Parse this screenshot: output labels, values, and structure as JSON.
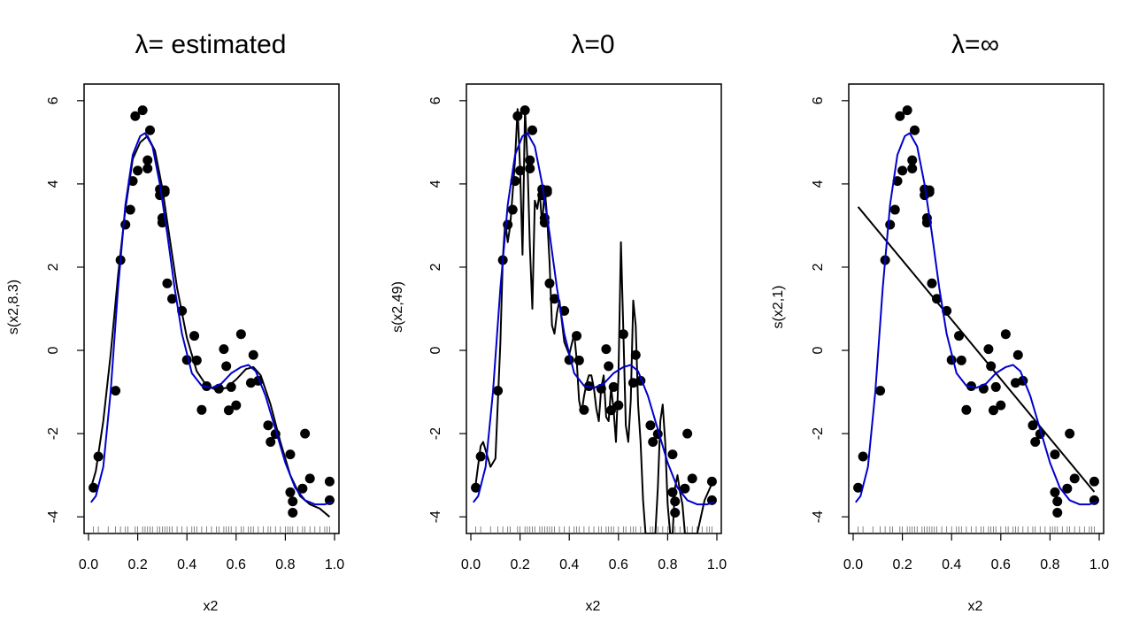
{
  "chart_data": [
    {
      "type": "scatter",
      "title": "λ= estimated",
      "xlabel": "x2",
      "ylabel": "s(x2,8.3)",
      "xlim": [
        0.0,
        1.0
      ],
      "ylim": [
        -4.4,
        6.4
      ],
      "xticks": [
        "0.0",
        "0.2",
        "0.4",
        "0.6",
        "0.8",
        "1.0"
      ],
      "yticks": [
        "-4",
        "-2",
        "0",
        "2",
        "4",
        "6"
      ],
      "fit_curve": {
        "color": "#000000",
        "x": [
          0.01,
          0.03,
          0.06,
          0.09,
          0.12,
          0.15,
          0.18,
          0.21,
          0.24,
          0.27,
          0.3,
          0.33,
          0.36,
          0.4,
          0.44,
          0.48,
          0.52,
          0.56,
          0.6,
          0.64,
          0.67,
          0.7,
          0.74,
          0.78,
          0.82,
          0.86,
          0.9,
          0.94,
          0.98
        ],
        "y": [
          -3.3,
          -2.9,
          -1.7,
          -0.1,
          1.8,
          3.4,
          4.6,
          5.0,
          5.15,
          4.8,
          3.9,
          2.7,
          1.5,
          0.3,
          -0.5,
          -0.85,
          -0.95,
          -0.9,
          -0.7,
          -0.45,
          -0.4,
          -0.6,
          -1.3,
          -2.2,
          -3.0,
          -3.5,
          -3.7,
          -3.8,
          -4.0
        ]
      },
      "reference_curve": {
        "color": "#0000cc",
        "x": [
          0.01,
          0.03,
          0.06,
          0.09,
          0.12,
          0.15,
          0.18,
          0.21,
          0.23,
          0.26,
          0.29,
          0.32,
          0.35,
          0.38,
          0.42,
          0.46,
          0.5,
          0.54,
          0.58,
          0.62,
          0.65,
          0.68,
          0.72,
          0.76,
          0.8,
          0.84,
          0.88,
          0.92,
          0.96,
          0.99
        ],
        "y": [
          -3.65,
          -3.5,
          -2.8,
          -1.0,
          1.5,
          3.5,
          4.7,
          5.15,
          5.22,
          4.9,
          4.0,
          2.8,
          1.5,
          0.4,
          -0.55,
          -0.85,
          -0.9,
          -0.8,
          -0.55,
          -0.4,
          -0.35,
          -0.5,
          -1.1,
          -1.9,
          -2.7,
          -3.3,
          -3.6,
          -3.7,
          -3.7,
          -3.65
        ]
      },
      "points": {
        "x": [
          0.02,
          0.04,
          0.11,
          0.13,
          0.15,
          0.17,
          0.18,
          0.19,
          0.2,
          0.22,
          0.24,
          0.24,
          0.25,
          0.29,
          0.29,
          0.3,
          0.3,
          0.31,
          0.31,
          0.32,
          0.34,
          0.38,
          0.4,
          0.43,
          0.44,
          0.46,
          0.48,
          0.53,
          0.55,
          0.56,
          0.57,
          0.58,
          0.6,
          0.62,
          0.66,
          0.67,
          0.69,
          0.73,
          0.74,
          0.76,
          0.82,
          0.82,
          0.83,
          0.83,
          0.87,
          0.88,
          0.9,
          0.98,
          0.98
        ],
        "y": [
          -3.3,
          -2.55,
          -0.97,
          2.17,
          3.02,
          3.38,
          4.07,
          5.63,
          4.32,
          5.77,
          4.57,
          4.37,
          5.29,
          3.73,
          3.87,
          3.18,
          3.07,
          3.85,
          3.8,
          1.61,
          1.24,
          0.95,
          -0.23,
          0.35,
          -0.24,
          -1.43,
          -0.86,
          -0.92,
          0.03,
          -0.38,
          -1.44,
          -0.88,
          -1.32,
          0.39,
          -0.78,
          -0.11,
          -0.73,
          -1.8,
          -2.2,
          -2.01,
          -3.41,
          -2.5,
          -3.9,
          -3.63,
          -3.32,
          -2.0,
          -3.08,
          -3.15,
          -3.6
        ]
      },
      "rug": [
        0.02,
        0.04,
        0.08,
        0.11,
        0.13,
        0.15,
        0.16,
        0.19,
        0.2,
        0.22,
        0.23,
        0.24,
        0.25,
        0.26,
        0.28,
        0.29,
        0.3,
        0.31,
        0.32,
        0.33,
        0.34,
        0.36,
        0.38,
        0.4,
        0.42,
        0.43,
        0.44,
        0.46,
        0.48,
        0.5,
        0.52,
        0.53,
        0.55,
        0.56,
        0.57,
        0.58,
        0.6,
        0.62,
        0.63,
        0.65,
        0.66,
        0.67,
        0.69,
        0.71,
        0.73,
        0.74,
        0.76,
        0.78,
        0.8,
        0.81,
        0.82,
        0.83,
        0.85,
        0.87,
        0.88,
        0.9,
        0.92,
        0.94,
        0.96,
        0.97,
        0.98
      ]
    },
    {
      "type": "scatter",
      "title": "λ=0",
      "xlabel": "x2",
      "ylabel": "s(x2,49)",
      "xlim": [
        0.0,
        1.0
      ],
      "ylim": [
        -4.4,
        6.4
      ],
      "xticks": [
        "0.0",
        "0.2",
        "0.4",
        "0.6",
        "0.8",
        "1.0"
      ],
      "yticks": [
        "-4",
        "-2",
        "0",
        "2",
        "4",
        "6"
      ],
      "fit_curve": {
        "color": "#000000",
        "x": [
          0.01,
          0.02,
          0.04,
          0.05,
          0.07,
          0.08,
          0.1,
          0.12,
          0.13,
          0.14,
          0.15,
          0.16,
          0.17,
          0.18,
          0.19,
          0.2,
          0.21,
          0.22,
          0.23,
          0.24,
          0.25,
          0.26,
          0.27,
          0.28,
          0.29,
          0.3,
          0.31,
          0.32,
          0.33,
          0.34,
          0.35,
          0.36,
          0.38,
          0.4,
          0.42,
          0.43,
          0.44,
          0.45,
          0.46,
          0.47,
          0.48,
          0.49,
          0.5,
          0.51,
          0.52,
          0.53,
          0.54,
          0.55,
          0.56,
          0.57,
          0.58,
          0.59,
          0.6,
          0.61,
          0.62,
          0.63,
          0.64,
          0.65,
          0.66,
          0.67,
          0.68,
          0.69,
          0.7,
          0.71,
          0.72,
          0.73,
          0.74,
          0.75,
          0.76,
          0.77,
          0.78,
          0.79,
          0.8,
          0.81,
          0.82,
          0.83,
          0.84,
          0.85,
          0.86,
          0.87,
          0.88,
          0.89,
          0.9,
          0.91,
          0.92,
          0.95,
          0.98
        ],
        "y": [
          -3.3,
          -3.2,
          -2.3,
          -2.2,
          -2.6,
          -2.8,
          -2.6,
          0.2,
          2.2,
          3.1,
          2.6,
          3.0,
          3.8,
          4.6,
          5.8,
          4.4,
          2.3,
          5.8,
          4.6,
          2.5,
          1.0,
          3.6,
          3.4,
          3.8,
          3.0,
          3.9,
          3.2,
          2.1,
          0.6,
          0.4,
          0.9,
          1.2,
          0.2,
          -0.1,
          0.4,
          -0.2,
          -1.2,
          -1.5,
          -1.1,
          -0.8,
          -0.6,
          -0.6,
          -0.9,
          -1.4,
          -1.7,
          -0.9,
          -0.6,
          -1.6,
          -1.7,
          -0.9,
          -1.4,
          -2.2,
          -0.6,
          2.6,
          0.4,
          -1.8,
          -2.2,
          -1.2,
          1.2,
          0.6,
          -1.3,
          -2.2,
          -3.6,
          -4.4,
          -4.4,
          -4.4,
          -4.4,
          -4.4,
          -3.3,
          -1.7,
          -1.3,
          -2.2,
          -3.7,
          -4.4,
          -4.4,
          -3.3,
          -3.0,
          -3.4,
          -3.7,
          -4.4,
          -4.4,
          -4.4,
          -4.4,
          -4.4,
          -4.4,
          -3.6,
          -3.2
        ]
      },
      "reference_curve": {
        "color": "#0000cc",
        "x": [
          0.01,
          0.03,
          0.06,
          0.09,
          0.12,
          0.15,
          0.18,
          0.21,
          0.23,
          0.26,
          0.29,
          0.32,
          0.35,
          0.38,
          0.42,
          0.46,
          0.5,
          0.54,
          0.58,
          0.62,
          0.65,
          0.68,
          0.72,
          0.76,
          0.8,
          0.84,
          0.88,
          0.92,
          0.96,
          0.99
        ],
        "y": [
          -3.65,
          -3.5,
          -2.8,
          -1.0,
          1.5,
          3.5,
          4.7,
          5.15,
          5.22,
          4.9,
          4.0,
          2.8,
          1.5,
          0.4,
          -0.55,
          -0.85,
          -0.9,
          -0.8,
          -0.55,
          -0.4,
          -0.35,
          -0.5,
          -1.1,
          -1.9,
          -2.7,
          -3.3,
          -3.6,
          -3.7,
          -3.7,
          -3.65
        ]
      },
      "points": {
        "x": [
          0.02,
          0.04,
          0.11,
          0.13,
          0.15,
          0.17,
          0.18,
          0.19,
          0.2,
          0.22,
          0.24,
          0.24,
          0.25,
          0.29,
          0.29,
          0.3,
          0.3,
          0.31,
          0.31,
          0.32,
          0.34,
          0.38,
          0.4,
          0.43,
          0.44,
          0.46,
          0.48,
          0.53,
          0.55,
          0.56,
          0.57,
          0.58,
          0.6,
          0.62,
          0.66,
          0.67,
          0.69,
          0.73,
          0.74,
          0.76,
          0.82,
          0.82,
          0.83,
          0.83,
          0.87,
          0.88,
          0.9,
          0.98,
          0.98
        ],
        "y": [
          -3.3,
          -2.55,
          -0.97,
          2.17,
          3.02,
          3.38,
          4.07,
          5.63,
          4.32,
          5.77,
          4.57,
          4.37,
          5.29,
          3.73,
          3.87,
          3.18,
          3.07,
          3.85,
          3.8,
          1.61,
          1.24,
          0.95,
          -0.23,
          0.35,
          -0.24,
          -1.43,
          -0.86,
          -0.92,
          0.03,
          -0.38,
          -1.44,
          -0.88,
          -1.32,
          0.39,
          -0.78,
          -0.11,
          -0.73,
          -1.8,
          -2.2,
          -2.01,
          -3.41,
          -2.5,
          -3.9,
          -3.63,
          -3.32,
          -2.0,
          -3.08,
          -3.15,
          -3.6
        ]
      },
      "rug": [
        0.02,
        0.04,
        0.08,
        0.11,
        0.13,
        0.15,
        0.16,
        0.19,
        0.2,
        0.22,
        0.23,
        0.24,
        0.25,
        0.26,
        0.28,
        0.29,
        0.3,
        0.31,
        0.32,
        0.33,
        0.34,
        0.36,
        0.38,
        0.4,
        0.42,
        0.43,
        0.44,
        0.46,
        0.48,
        0.5,
        0.52,
        0.53,
        0.55,
        0.56,
        0.57,
        0.58,
        0.6,
        0.62,
        0.63,
        0.65,
        0.66,
        0.67,
        0.69,
        0.71,
        0.73,
        0.74,
        0.76,
        0.78,
        0.8,
        0.81,
        0.82,
        0.83,
        0.85,
        0.87,
        0.88,
        0.9,
        0.92,
        0.94,
        0.96,
        0.97,
        0.98
      ]
    },
    {
      "type": "scatter",
      "title": "λ=∞",
      "xlabel": "x2",
      "ylabel": "s(x2,1)",
      "xlim": [
        0.0,
        1.0
      ],
      "ylim": [
        -4.4,
        6.4
      ],
      "xticks": [
        "0.0",
        "0.2",
        "0.4",
        "0.6",
        "0.8",
        "1.0"
      ],
      "yticks": [
        "-4",
        "-2",
        "0",
        "2",
        "4",
        "6"
      ],
      "fit_curve": {
        "color": "#000000",
        "x": [
          0.02,
          0.98
        ],
        "y": [
          3.45,
          -3.4
        ]
      },
      "reference_curve": {
        "color": "#0000cc",
        "x": [
          0.01,
          0.03,
          0.06,
          0.09,
          0.12,
          0.15,
          0.18,
          0.21,
          0.23,
          0.26,
          0.29,
          0.32,
          0.35,
          0.38,
          0.42,
          0.46,
          0.5,
          0.54,
          0.58,
          0.62,
          0.65,
          0.68,
          0.72,
          0.76,
          0.8,
          0.84,
          0.88,
          0.92,
          0.96,
          0.99
        ],
        "y": [
          -3.65,
          -3.5,
          -2.8,
          -1.0,
          1.5,
          3.5,
          4.7,
          5.15,
          5.22,
          4.9,
          4.0,
          2.8,
          1.5,
          0.4,
          -0.55,
          -0.85,
          -0.9,
          -0.8,
          -0.55,
          -0.4,
          -0.35,
          -0.5,
          -1.1,
          -1.9,
          -2.7,
          -3.3,
          -3.6,
          -3.7,
          -3.7,
          -3.65
        ]
      },
      "points": {
        "x": [
          0.02,
          0.04,
          0.11,
          0.13,
          0.15,
          0.17,
          0.18,
          0.19,
          0.2,
          0.22,
          0.24,
          0.24,
          0.25,
          0.29,
          0.29,
          0.3,
          0.3,
          0.31,
          0.31,
          0.32,
          0.34,
          0.38,
          0.4,
          0.43,
          0.44,
          0.46,
          0.48,
          0.53,
          0.55,
          0.56,
          0.57,
          0.58,
          0.6,
          0.62,
          0.66,
          0.67,
          0.69,
          0.73,
          0.74,
          0.76,
          0.82,
          0.82,
          0.83,
          0.83,
          0.87,
          0.88,
          0.9,
          0.98,
          0.98
        ],
        "y": [
          -3.3,
          -2.55,
          -0.97,
          2.17,
          3.02,
          3.38,
          4.07,
          5.63,
          4.32,
          5.77,
          4.57,
          4.37,
          5.29,
          3.73,
          3.87,
          3.18,
          3.07,
          3.85,
          3.8,
          1.61,
          1.24,
          0.95,
          -0.23,
          0.35,
          -0.24,
          -1.43,
          -0.86,
          -0.92,
          0.03,
          -0.38,
          -1.44,
          -0.88,
          -1.32,
          0.39,
          -0.78,
          -0.11,
          -0.73,
          -1.8,
          -2.2,
          -2.01,
          -3.41,
          -2.5,
          -3.9,
          -3.63,
          -3.32,
          -2.0,
          -3.08,
          -3.15,
          -3.6
        ]
      },
      "rug": [
        0.02,
        0.04,
        0.08,
        0.11,
        0.13,
        0.15,
        0.16,
        0.19,
        0.2,
        0.22,
        0.23,
        0.24,
        0.25,
        0.26,
        0.28,
        0.29,
        0.3,
        0.31,
        0.32,
        0.33,
        0.34,
        0.36,
        0.38,
        0.4,
        0.42,
        0.43,
        0.44,
        0.46,
        0.48,
        0.5,
        0.52,
        0.53,
        0.55,
        0.56,
        0.57,
        0.58,
        0.6,
        0.62,
        0.63,
        0.65,
        0.66,
        0.67,
        0.69,
        0.71,
        0.73,
        0.74,
        0.76,
        0.78,
        0.8,
        0.81,
        0.82,
        0.83,
        0.85,
        0.87,
        0.88,
        0.9,
        0.92,
        0.94,
        0.96,
        0.97,
        0.98
      ]
    }
  ]
}
